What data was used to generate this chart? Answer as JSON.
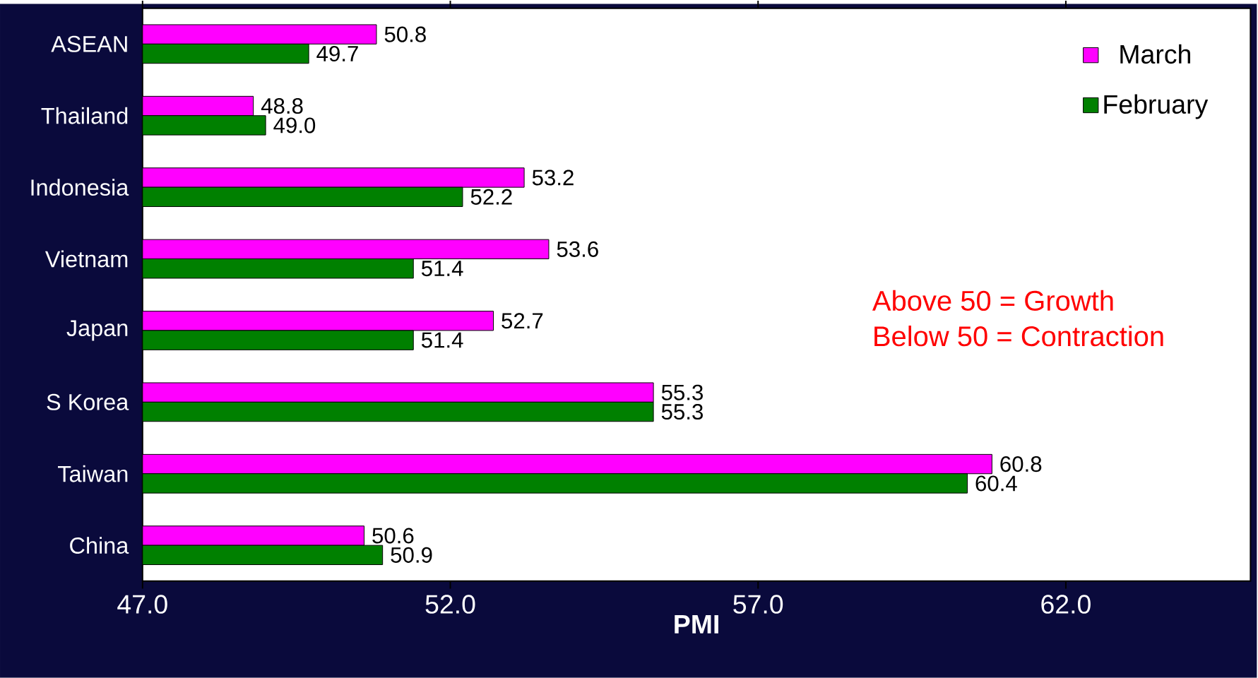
{
  "chart_data": {
    "type": "bar",
    "orientation": "horizontal",
    "xlabel": "PMI",
    "categories": [
      "ASEAN",
      "Thailand",
      "Indonesia",
      "Vietnam",
      "Japan",
      "S Korea",
      "Taiwan",
      "China"
    ],
    "series": [
      {
        "name": "March",
        "color": "#ff00ff",
        "values": [
          50.8,
          48.8,
          53.2,
          53.6,
          52.7,
          55.3,
          60.8,
          50.6
        ],
        "value_labels": [
          "50.8",
          "48.8",
          "53.2",
          "53.6",
          "52.7",
          "55.3",
          "60.8",
          "50.6"
        ]
      },
      {
        "name": "February",
        "color": "#008000",
        "values": [
          49.7,
          49.0,
          52.2,
          51.4,
          51.4,
          55.3,
          60.4,
          50.9
        ],
        "value_labels": [
          "49.7",
          "49.0",
          "52.2",
          "51.4",
          "51.4",
          "55.3",
          "60.4",
          "50.9"
        ]
      }
    ],
    "xlim": [
      47,
      65
    ],
    "xticks": [
      {
        "value": 47,
        "label": "47.0"
      },
      {
        "value": 52,
        "label": "52.0"
      },
      {
        "value": 57,
        "label": "57.0"
      },
      {
        "value": 62,
        "label": "62.0"
      }
    ],
    "legend": "top right",
    "grid": false,
    "annotations": [
      "Above 50 = Growth",
      "Below 50 = Contraction"
    ]
  }
}
